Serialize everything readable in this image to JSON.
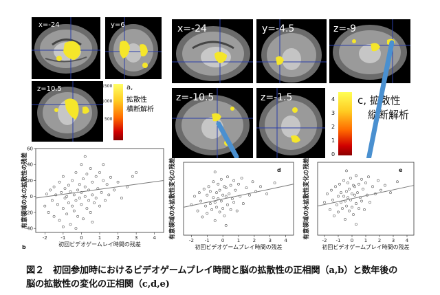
{
  "panel_a": {
    "slice_labels": [
      "x=-24",
      "y=6",
      "z=10.5"
    ],
    "colorbar_ticks": [
      "1500",
      "1000",
      "500"
    ],
    "title": "a,",
    "subtitle_1": "拡散性",
    "subtitle_2": "横断解析"
  },
  "panel_c": {
    "slice_labels": [
      "x=-24",
      "y=-4.5",
      "z=-9",
      "z=-10.5",
      "z=-1.5"
    ],
    "colorbar_ticks": [
      "4",
      "3",
      "2",
      "1",
      "0"
    ],
    "title": "c, 拡散性",
    "subtitle": "縦断解析"
  },
  "scatter_b": {
    "letter": "b",
    "ylabel": "有意領域の水の拡散性の残差",
    "xlabel": "初回ビデオゲームレイ時間の残差",
    "xticks": [
      "-2",
      "-1",
      "0",
      "1",
      "2",
      "3",
      "4"
    ],
    "yticks": [
      "60",
      "40",
      "20",
      "0",
      "-20",
      "-40"
    ]
  },
  "scatter_d": {
    "letter": "d",
    "ylabel": "有意領域の水拡散性変化の残差",
    "xlabel": "初回ビデオゲームプレイ時間の残差",
    "xticks": [
      "-2",
      "-1",
      "0",
      "1",
      "2",
      "3",
      "4"
    ]
  },
  "scatter_e": {
    "letter": "e",
    "ylabel": "有意領域の水拡散性変化の残差",
    "xlabel": "初回ビデオゲームプレイ時間の残差",
    "xticks": [
      "-2",
      "-1",
      "0",
      "1",
      "2",
      "3",
      "4"
    ]
  },
  "caption": {
    "line1": "図２　初回参加時におけるビデオゲームプレイ時間と脳の拡散性の正相関（a,b）と数年後の",
    "line2": "脳の拡散性の変化の正相関（c,d,e)"
  },
  "colors": {
    "blob": "#f5e62a",
    "crosshair": "#2a3ea8",
    "arrow": "#4a90d0",
    "point": "#555555"
  },
  "chart_data": [
    {
      "type": "scatter",
      "name_letter": "b",
      "xlabel": "初回ビデオゲームレイ時間の残差",
      "ylabel": "有意領域の水の拡散性の残差",
      "xlim": [
        -2.5,
        4.5
      ],
      "ylim": [
        -45,
        60
      ],
      "trend": {
        "x": [
          -2.5,
          4.5
        ],
        "y": [
          -2,
          20
        ]
      },
      "points": [
        [
          -2.0,
          -12
        ],
        [
          -1.9,
          3
        ],
        [
          -1.8,
          -20
        ],
        [
          -1.7,
          8
        ],
        [
          -1.6,
          -5
        ],
        [
          -1.5,
          -25
        ],
        [
          -1.5,
          12
        ],
        [
          -1.4,
          2
        ],
        [
          -1.3,
          -10
        ],
        [
          -1.2,
          18
        ],
        [
          -1.2,
          -30
        ],
        [
          -1.1,
          5
        ],
        [
          -1.0,
          -15
        ],
        [
          -1.0,
          25
        ],
        [
          -0.9,
          -2
        ],
        [
          -0.9,
          10
        ],
        [
          -0.8,
          -22
        ],
        [
          -0.8,
          0
        ],
        [
          -0.7,
          14
        ],
        [
          -0.7,
          -8
        ],
        [
          -0.6,
          -35
        ],
        [
          -0.6,
          6
        ],
        [
          -0.5,
          20
        ],
        [
          -0.5,
          -12
        ],
        [
          -0.4,
          2
        ],
        [
          -0.4,
          -18
        ],
        [
          -0.3,
          30
        ],
        [
          -0.3,
          -5
        ],
        [
          -0.2,
          8
        ],
        [
          -0.2,
          -25
        ],
        [
          -0.1,
          15
        ],
        [
          -0.1,
          -2
        ],
        [
          0.0,
          40
        ],
        [
          0.0,
          -10
        ],
        [
          0.0,
          5
        ],
        [
          0.1,
          22
        ],
        [
          0.1,
          -28
        ],
        [
          0.2,
          0
        ],
        [
          0.2,
          12
        ],
        [
          0.3,
          -15
        ],
        [
          0.3,
          28
        ],
        [
          0.4,
          -5
        ],
        [
          0.4,
          8
        ],
        [
          0.5,
          35
        ],
        [
          0.5,
          -20
        ],
        [
          0.6,
          2
        ],
        [
          0.6,
          18
        ],
        [
          0.7,
          -8
        ],
        [
          0.8,
          25
        ],
        [
          0.8,
          -2
        ],
        [
          0.9,
          10
        ],
        [
          1.0,
          -12
        ],
        [
          1.0,
          30
        ],
        [
          1.1,
          5
        ],
        [
          1.2,
          20
        ],
        [
          1.3,
          -5
        ],
        [
          1.4,
          15
        ],
        [
          1.5,
          2
        ],
        [
          1.6,
          24
        ],
        [
          1.8,
          8
        ],
        [
          2.0,
          18
        ],
        [
          2.2,
          -2
        ],
        [
          2.5,
          12
        ],
        [
          2.8,
          25
        ],
        [
          3.0,
          30
        ],
        [
          -1.0,
          -38
        ],
        [
          0.2,
          50
        ],
        [
          -0.3,
          -40
        ],
        [
          0.6,
          -32
        ],
        [
          1.2,
          40
        ]
      ]
    },
    {
      "type": "scatter",
      "name_letter": "d",
      "xlabel": "初回ビデオゲームプレイ時間の残差",
      "ylabel": "有意領域の水拡散性変化の残差",
      "xlim": [
        -2.5,
        4.5
      ],
      "ylim": [
        -3,
        3
      ],
      "trend": {
        "x": [
          -2.5,
          4.5
        ],
        "y": [
          -0.7,
          1.2
        ]
      },
      "points": [
        [
          -2.0,
          -0.5
        ],
        [
          -1.8,
          0.2
        ],
        [
          -1.6,
          -1.0
        ],
        [
          -1.5,
          0.5
        ],
        [
          -1.4,
          -0.2
        ],
        [
          -1.3,
          -1.5
        ],
        [
          -1.2,
          0.8
        ],
        [
          -1.1,
          -0.6
        ],
        [
          -1.0,
          0.3
        ],
        [
          -1.0,
          -1.2
        ],
        [
          -0.9,
          1.0
        ],
        [
          -0.8,
          -0.4
        ],
        [
          -0.8,
          0.6
        ],
        [
          -0.7,
          -0.9
        ],
        [
          -0.6,
          0.1
        ],
        [
          -0.6,
          1.4
        ],
        [
          -0.5,
          -0.3
        ],
        [
          -0.5,
          -1.8
        ],
        [
          -0.4,
          0.5
        ],
        [
          -0.4,
          -0.7
        ],
        [
          -0.3,
          1.2
        ],
        [
          -0.3,
          0.0
        ],
        [
          -0.2,
          -1.1
        ],
        [
          -0.2,
          0.7
        ],
        [
          -0.1,
          -0.2
        ],
        [
          -0.1,
          1.6
        ],
        [
          0.0,
          0.3
        ],
        [
          0.0,
          -0.8
        ],
        [
          0.1,
          1.0
        ],
        [
          0.1,
          -1.4
        ],
        [
          0.2,
          0.2
        ],
        [
          0.2,
          0.9
        ],
        [
          0.3,
          -0.5
        ],
        [
          0.3,
          1.8
        ],
        [
          0.4,
          0.4
        ],
        [
          0.5,
          -0.9
        ],
        [
          0.5,
          1.1
        ],
        [
          0.6,
          0.0
        ],
        [
          0.7,
          1.5
        ],
        [
          0.7,
          -0.3
        ],
        [
          0.8,
          0.7
        ],
        [
          0.9,
          -1.0
        ],
        [
          1.0,
          1.2
        ],
        [
          1.1,
          0.2
        ],
        [
          1.2,
          1.7
        ],
        [
          1.3,
          -0.4
        ],
        [
          1.5,
          0.9
        ],
        [
          1.7,
          0.3
        ],
        [
          1.9,
          1.4
        ],
        [
          2.1,
          0.6
        ],
        [
          2.4,
          1.0
        ],
        [
          2.8,
          0.4
        ],
        [
          3.3,
          1.3
        ],
        [
          -0.5,
          2.2
        ],
        [
          0.2,
          -2.2
        ]
      ]
    },
    {
      "type": "scatter",
      "name_letter": "e",
      "xlabel": "初回ビデオゲームプレイ時間の残差",
      "ylabel": "有意領域の水拡散性変化の残差",
      "xlim": [
        -2.5,
        4.5
      ],
      "ylim": [
        -3,
        3
      ],
      "trend": {
        "x": [
          -2.5,
          4.5
        ],
        "y": [
          -0.6,
          1.1
        ]
      },
      "points": [
        [
          -2.0,
          -0.3
        ],
        [
          -1.8,
          0.4
        ],
        [
          -1.6,
          -0.9
        ],
        [
          -1.5,
          0.7
        ],
        [
          -1.4,
          -0.1
        ],
        [
          -1.3,
          -1.4
        ],
        [
          -1.2,
          1.0
        ],
        [
          -1.1,
          -0.5
        ],
        [
          -1.0,
          0.2
        ],
        [
          -1.0,
          -1.1
        ],
        [
          -0.9,
          1.2
        ],
        [
          -0.8,
          -0.3
        ],
        [
          -0.8,
          0.5
        ],
        [
          -0.7,
          -0.8
        ],
        [
          -0.6,
          0.2
        ],
        [
          -0.6,
          1.5
        ],
        [
          -0.5,
          -0.2
        ],
        [
          -0.5,
          -1.7
        ],
        [
          -0.4,
          0.6
        ],
        [
          -0.4,
          -0.6
        ],
        [
          -0.3,
          1.3
        ],
        [
          -0.3,
          0.1
        ],
        [
          -0.2,
          -1.0
        ],
        [
          -0.2,
          0.8
        ],
        [
          -0.1,
          -0.1
        ],
        [
          -0.1,
          1.7
        ],
        [
          0.0,
          0.4
        ],
        [
          0.0,
          -0.7
        ],
        [
          0.1,
          1.1
        ],
        [
          0.1,
          -1.3
        ],
        [
          0.2,
          0.3
        ],
        [
          0.2,
          1.0
        ],
        [
          0.3,
          -0.4
        ],
        [
          0.3,
          1.9
        ],
        [
          0.4,
          0.5
        ],
        [
          0.5,
          -0.8
        ],
        [
          0.5,
          1.2
        ],
        [
          0.6,
          0.1
        ],
        [
          0.7,
          1.6
        ],
        [
          0.7,
          -0.2
        ],
        [
          0.8,
          0.8
        ],
        [
          0.9,
          -0.9
        ],
        [
          1.0,
          1.3
        ],
        [
          1.1,
          0.3
        ],
        [
          1.2,
          1.8
        ],
        [
          1.3,
          -0.3
        ],
        [
          1.5,
          1.0
        ],
        [
          1.7,
          0.4
        ],
        [
          1.9,
          1.5
        ],
        [
          2.1,
          0.7
        ],
        [
          2.4,
          1.1
        ],
        [
          2.8,
          0.5
        ],
        [
          3.3,
          1.4
        ],
        [
          -0.4,
          2.3
        ],
        [
          0.3,
          -2.1
        ]
      ]
    }
  ]
}
